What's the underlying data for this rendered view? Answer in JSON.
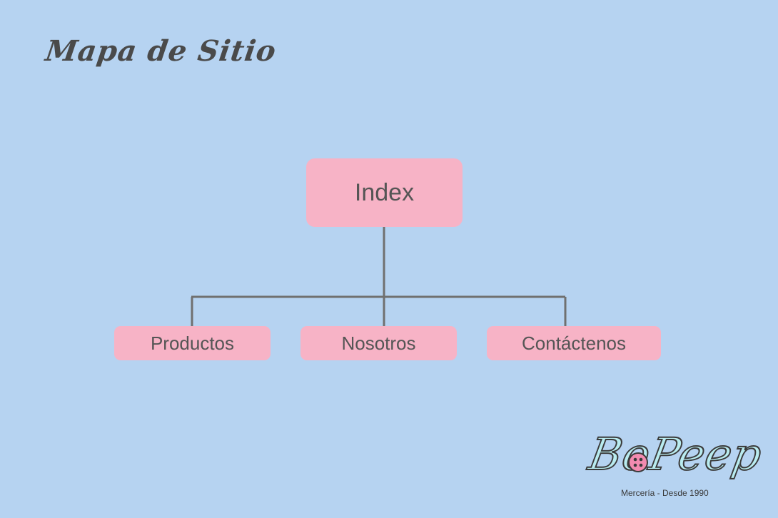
{
  "page": {
    "title": "Mapa de Sitio"
  },
  "diagram": {
    "root": {
      "label": "Index"
    },
    "children": [
      {
        "label": "Productos"
      },
      {
        "label": "Nosotros"
      },
      {
        "label": "Contáctenos"
      }
    ]
  },
  "logo": {
    "wordmark": "BoPeep",
    "tagline": "Mercería - Desde 1990"
  },
  "colors": {
    "background": "#b6d3f1",
    "node_fill": "#f7b3c6",
    "node_text": "#555555",
    "connector": "#707070",
    "title_text": "#4a4a4a",
    "logo_fill": "#b9ecf0",
    "logo_button": "#f28bb0"
  }
}
